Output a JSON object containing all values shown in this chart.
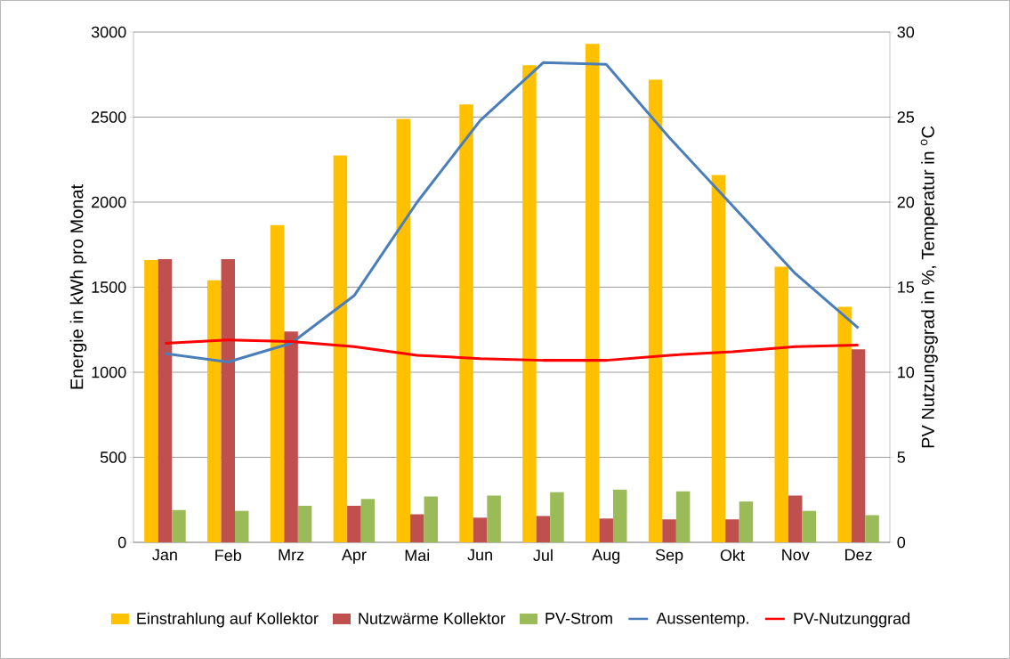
{
  "chart_data": {
    "type": "bar",
    "categories": [
      "Jan",
      "Feb",
      "Mrz",
      "Apr",
      "Mai",
      "Jun",
      "Jul",
      "Aug",
      "Sep",
      "Okt",
      "Nov",
      "Dez"
    ],
    "ylabel": "Energie in kWh pro Monat",
    "y2label": "PV Nutzungsgrad in %, Temperatur in $^{o}$C",
    "ylim": [
      0,
      3000
    ],
    "yticks": [
      0,
      500,
      1000,
      1500,
      2000,
      2500,
      3000
    ],
    "y2lim": [
      0,
      30
    ],
    "y2ticks": [
      0,
      5,
      10,
      15,
      20,
      25,
      30
    ],
    "grid": "y",
    "legend": "bottom",
    "series": [
      {
        "name": "Einstrahlung auf Kollektor",
        "color": "#ffc000",
        "values": [
          1660,
          1540,
          1865,
          2275,
          2490,
          2575,
          2805,
          2930,
          2720,
          2160,
          1620,
          1385
        ]
      },
      {
        "name": "Nutzwärme Kollektor",
        "color": "#c0504d",
        "values": [
          1665,
          1665,
          1240,
          215,
          165,
          145,
          155,
          140,
          135,
          135,
          275,
          1135
        ]
      },
      {
        "name": "PV-Strom",
        "color": "#9bbb59",
        "values": [
          190,
          185,
          215,
          255,
          270,
          275,
          295,
          310,
          300,
          240,
          185,
          160
        ]
      },
      {
        "name": "Aussentemp.",
        "type": "line",
        "axis": "y2",
        "color": "#4a7ebb",
        "values": [
          11.1,
          10.6,
          11.7,
          14.5,
          20.0,
          24.8,
          28.2,
          28.1,
          23.8,
          19.8,
          15.8,
          12.6
        ]
      },
      {
        "name": "PV-Nutzunggrad",
        "type": "line",
        "axis": "y2",
        "color": "#ff0000",
        "values": [
          11.7,
          11.9,
          11.8,
          11.5,
          11.0,
          10.8,
          10.7,
          10.7,
          11.0,
          11.2,
          11.5,
          11.6
        ]
      }
    ]
  }
}
